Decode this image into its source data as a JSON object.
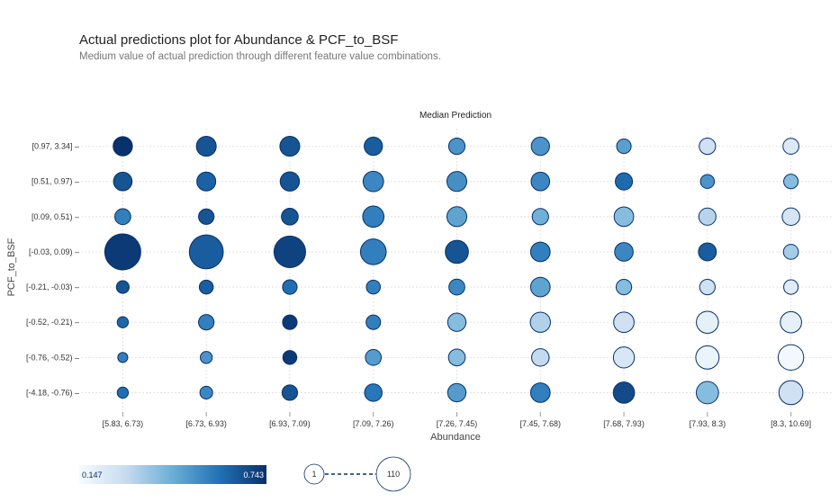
{
  "header": {
    "title": "Actual predictions plot for Abundance & PCF_to_BSF",
    "subtitle": "Medium value of actual prediction through different feature value combinations."
  },
  "chart_data": {
    "type": "scatter",
    "subtitle_top": "Median Prediction",
    "xlabel": "Abundance",
    "ylabel": "PCF_to_BSF",
    "x_categories": [
      "[5.83, 6.73)",
      "[6.73, 6.93)",
      "[6.93, 7.09)",
      "[7.09, 7.26)",
      "[7.26, 7.45)",
      "[7.45, 7.68)",
      "[7.68, 7.93)",
      "[7.93, 8.3)",
      "[8.3, 10.69]"
    ],
    "y_categories": [
      "[0.97, 3.34]",
      "[0.51, 0.97)",
      "[0.09, 0.51)",
      "[-0.03, 0.09)",
      "[-0.21, -0.03)",
      "[-0.52, -0.21)",
      "[-0.76, -0.52)",
      "[-4.18, -0.76)"
    ],
    "color_range": [
      0.147,
      0.743
    ],
    "color_labels": {
      "min": "0.147",
      "max": "0.743"
    },
    "size_range": [
      1,
      110
    ],
    "size_labels": {
      "min": "1",
      "max": "110"
    },
    "points": [
      {
        "x": "[5.83, 6.73)",
        "y": "[0.97, 3.34]",
        "value": 0.74,
        "count": 20
      },
      {
        "x": "[6.73, 6.93)",
        "y": "[0.97, 3.34]",
        "value": 0.66,
        "count": 22
      },
      {
        "x": "[6.93, 7.09)",
        "y": "[0.97, 3.34]",
        "value": 0.66,
        "count": 22
      },
      {
        "x": "[7.09, 7.26)",
        "y": "[0.97, 3.34]",
        "value": 0.64,
        "count": 17
      },
      {
        "x": "[7.26, 7.45)",
        "y": "[0.97, 3.34]",
        "value": 0.51,
        "count": 12
      },
      {
        "x": "[7.45, 7.68)",
        "y": "[0.97, 3.34]",
        "value": 0.51,
        "count": 17
      },
      {
        "x": "[7.68, 7.93)",
        "y": "[0.97, 3.34]",
        "value": 0.48,
        "count": 8
      },
      {
        "x": "[7.93, 8.3)",
        "y": "[0.97, 3.34]",
        "value": 0.27,
        "count": 12
      },
      {
        "x": "[8.3, 10.69]",
        "y": "[0.97, 3.34]",
        "value": 0.23,
        "count": 11
      },
      {
        "x": "[5.83, 6.73)",
        "y": "[0.51, 0.97)",
        "value": 0.66,
        "count": 18
      },
      {
        "x": "[6.73, 6.93)",
        "y": "[0.51, 0.97)",
        "value": 0.63,
        "count": 19
      },
      {
        "x": "[6.93, 7.09)",
        "y": "[0.51, 0.97)",
        "value": 0.66,
        "count": 20
      },
      {
        "x": "[7.09, 7.26)",
        "y": "[0.51, 0.97)",
        "value": 0.54,
        "count": 24
      },
      {
        "x": "[7.26, 7.45)",
        "y": "[0.51, 0.97)",
        "value": 0.52,
        "count": 22
      },
      {
        "x": "[7.45, 7.68)",
        "y": "[0.51, 0.97)",
        "value": 0.54,
        "count": 18
      },
      {
        "x": "[7.68, 7.93)",
        "y": "[0.51, 0.97)",
        "value": 0.61,
        "count": 14
      },
      {
        "x": "[7.93, 8.3)",
        "y": "[0.51, 0.97)",
        "value": 0.51,
        "count": 7
      },
      {
        "x": "[8.3, 10.69]",
        "y": "[0.51, 0.97)",
        "value": 0.4,
        "count": 8
      },
      {
        "x": "[5.83, 6.73)",
        "y": "[0.09, 0.51)",
        "value": 0.56,
        "count": 11
      },
      {
        "x": "[6.73, 6.93)",
        "y": "[0.09, 0.51)",
        "value": 0.66,
        "count": 10
      },
      {
        "x": "[6.93, 7.09)",
        "y": "[0.09, 0.51)",
        "value": 0.66,
        "count": 13
      },
      {
        "x": "[7.09, 7.26)",
        "y": "[0.09, 0.51)",
        "value": 0.56,
        "count": 27
      },
      {
        "x": "[7.26, 7.45)",
        "y": "[0.09, 0.51)",
        "value": 0.47,
        "count": 22
      },
      {
        "x": "[7.45, 7.68)",
        "y": "[0.09, 0.51)",
        "value": 0.44,
        "count": 12
      },
      {
        "x": "[7.68, 7.93)",
        "y": "[0.09, 0.51)",
        "value": 0.4,
        "count": 21
      },
      {
        "x": "[7.93, 8.3)",
        "y": "[0.09, 0.51)",
        "value": 0.32,
        "count": 14
      },
      {
        "x": "[8.3, 10.69]",
        "y": "[0.09, 0.51)",
        "value": 0.25,
        "count": 15
      },
      {
        "x": "[5.83, 6.73)",
        "y": "[-0.03, 0.09)",
        "value": 0.72,
        "count": 110
      },
      {
        "x": "[6.73, 6.93)",
        "y": "[-0.03, 0.09)",
        "value": 0.64,
        "count": 95
      },
      {
        "x": "[6.93, 7.09)",
        "y": "[-0.03, 0.09)",
        "value": 0.7,
        "count": 79
      },
      {
        "x": "[7.09, 7.26)",
        "y": "[-0.03, 0.09)",
        "value": 0.56,
        "count": 46
      },
      {
        "x": "[7.26, 7.45)",
        "y": "[-0.03, 0.09)",
        "value": 0.66,
        "count": 34
      },
      {
        "x": "[7.45, 7.68)",
        "y": "[-0.03, 0.09)",
        "value": 0.56,
        "count": 21
      },
      {
        "x": "[7.68, 7.93)",
        "y": "[-0.03, 0.09)",
        "value": 0.54,
        "count": 18
      },
      {
        "x": "[7.93, 8.3)",
        "y": "[-0.03, 0.09)",
        "value": 0.64,
        "count": 16
      },
      {
        "x": "[8.3, 10.69]",
        "y": "[-0.03, 0.09)",
        "value": 0.35,
        "count": 9
      },
      {
        "x": "[5.83, 6.73)",
        "y": "[-0.21, -0.03)",
        "value": 0.66,
        "count": 5
      },
      {
        "x": "[6.73, 6.93)",
        "y": "[-0.21, -0.03)",
        "value": 0.64,
        "count": 7
      },
      {
        "x": "[6.93, 7.09)",
        "y": "[-0.21, -0.03)",
        "value": 0.6,
        "count": 8
      },
      {
        "x": "[7.09, 7.26)",
        "y": "[-0.21, -0.03)",
        "value": 0.56,
        "count": 7
      },
      {
        "x": "[7.26, 7.45)",
        "y": "[-0.21, -0.03)",
        "value": 0.54,
        "count": 11
      },
      {
        "x": "[7.45, 7.68)",
        "y": "[-0.21, -0.03)",
        "value": 0.47,
        "count": 21
      },
      {
        "x": "[7.68, 7.93)",
        "y": "[-0.21, -0.03)",
        "value": 0.4,
        "count": 10
      },
      {
        "x": "[7.93, 8.3)",
        "y": "[-0.21, -0.03)",
        "value": 0.27,
        "count": 10
      },
      {
        "x": "[8.3, 10.69]",
        "y": "[-0.21, -0.03)",
        "value": 0.22,
        "count": 8
      },
      {
        "x": "[5.83, 6.73)",
        "y": "[-0.52, -0.21)",
        "value": 0.62,
        "count": 3
      },
      {
        "x": "[6.73, 6.93)",
        "y": "[-0.52, -0.21)",
        "value": 0.56,
        "count": 10
      },
      {
        "x": "[6.93, 7.09)",
        "y": "[-0.52, -0.21)",
        "value": 0.72,
        "count": 8
      },
      {
        "x": "[7.09, 7.26)",
        "y": "[-0.52, -0.21)",
        "value": 0.56,
        "count": 8
      },
      {
        "x": "[7.26, 7.45)",
        "y": "[-0.52, -0.21)",
        "value": 0.4,
        "count": 17
      },
      {
        "x": "[7.45, 7.68)",
        "y": "[-0.52, -0.21)",
        "value": 0.33,
        "count": 23
      },
      {
        "x": "[7.68, 7.93)",
        "y": "[-0.52, -0.21)",
        "value": 0.27,
        "count": 24
      },
      {
        "x": "[7.93, 8.3)",
        "y": "[-0.52, -0.21)",
        "value": 0.2,
        "count": 30
      },
      {
        "x": "[8.3, 10.69]",
        "y": "[-0.52, -0.21)",
        "value": 0.2,
        "count": 27
      },
      {
        "x": "[5.83, 6.73)",
        "y": "[-0.76, -0.52)",
        "value": 0.56,
        "count": 2
      },
      {
        "x": "[6.73, 6.93)",
        "y": "[-0.76, -0.52)",
        "value": 0.51,
        "count": 4
      },
      {
        "x": "[6.93, 7.09)",
        "y": "[-0.76, -0.52)",
        "value": 0.72,
        "count": 7
      },
      {
        "x": "[7.09, 7.26)",
        "y": "[-0.76, -0.52)",
        "value": 0.49,
        "count": 11
      },
      {
        "x": "[7.26, 7.45)",
        "y": "[-0.76, -0.52)",
        "value": 0.4,
        "count": 13
      },
      {
        "x": "[7.45, 7.68)",
        "y": "[-0.76, -0.52)",
        "value": 0.3,
        "count": 15
      },
      {
        "x": "[7.68, 7.93)",
        "y": "[-0.76, -0.52)",
        "value": 0.24,
        "count": 26
      },
      {
        "x": "[7.93, 8.3)",
        "y": "[-0.76, -0.52)",
        "value": 0.18,
        "count": 35
      },
      {
        "x": "[8.3, 10.69]",
        "y": "[-0.76, -0.52)",
        "value": 0.16,
        "count": 45
      },
      {
        "x": "[5.83, 6.73)",
        "y": "[-4.18, -0.76)",
        "value": 0.6,
        "count": 3
      },
      {
        "x": "[6.73, 6.93)",
        "y": "[-4.18, -0.76)",
        "value": 0.54,
        "count": 5
      },
      {
        "x": "[6.93, 7.09)",
        "y": "[-4.18, -0.76)",
        "value": 0.66,
        "count": 10
      },
      {
        "x": "[7.09, 7.26)",
        "y": "[-4.18, -0.76)",
        "value": 0.58,
        "count": 15
      },
      {
        "x": "[7.26, 7.45)",
        "y": "[-4.18, -0.76)",
        "value": 0.49,
        "count": 17
      },
      {
        "x": "[7.45, 7.68)",
        "y": "[-4.18, -0.76)",
        "value": 0.56,
        "count": 21
      },
      {
        "x": "[7.68, 7.93)",
        "y": "[-4.18, -0.76)",
        "value": 0.68,
        "count": 27
      },
      {
        "x": "[7.93, 8.3)",
        "y": "[-4.18, -0.76)",
        "value": 0.4,
        "count": 31
      },
      {
        "x": "[8.3, 10.69]",
        "y": "[-4.18, -0.76)",
        "value": 0.27,
        "count": 38
      }
    ]
  }
}
